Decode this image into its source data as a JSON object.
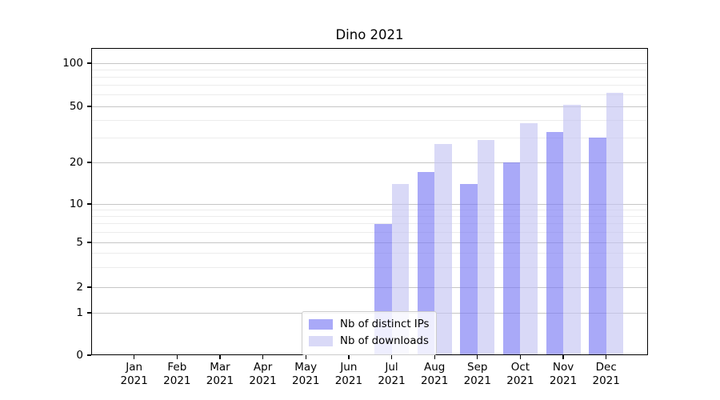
{
  "chart_data": {
    "type": "bar",
    "title": "Dino 2021",
    "xlabel": "",
    "ylabel": "",
    "yscale": "symlog",
    "grid": true,
    "gridlines_visible_through_bars": true,
    "legend_position": "lower center",
    "ylim": [
      0,
      125
    ],
    "yticks": [
      0,
      1,
      2,
      5,
      10,
      20,
      50,
      100
    ],
    "ytick_labels": [
      "0",
      "1",
      "2",
      "5",
      "10",
      "20",
      "50",
      "100"
    ],
    "yminor_ticks": [
      3,
      4,
      6,
      7,
      8,
      9,
      30,
      40,
      60,
      70,
      80,
      90
    ],
    "categories": [
      {
        "line1": "Jan",
        "line2": "2021"
      },
      {
        "line1": "Feb",
        "line2": "2021"
      },
      {
        "line1": "Mar",
        "line2": "2021"
      },
      {
        "line1": "Apr",
        "line2": "2021"
      },
      {
        "line1": "May",
        "line2": "2021"
      },
      {
        "line1": "Jun",
        "line2": "2021"
      },
      {
        "line1": "Jul",
        "line2": "2021"
      },
      {
        "line1": "Aug",
        "line2": "2021"
      },
      {
        "line1": "Sep",
        "line2": "2021"
      },
      {
        "line1": "Oct",
        "line2": "2021"
      },
      {
        "line1": "Nov",
        "line2": "2021"
      },
      {
        "line1": "Dec",
        "line2": "2021"
      }
    ],
    "series": [
      {
        "name": "Nb of distinct IPs",
        "color": "#7b7bf4",
        "composite_color_on_white": "#a9a9f8",
        "alpha": 0.65,
        "values": [
          0,
          0,
          0,
          0,
          0,
          0,
          7,
          17,
          14,
          20,
          33,
          30
        ]
      },
      {
        "name": "Nb of downloads",
        "color": "#c4c4f3",
        "composite_color_on_white": "#d9d9f7",
        "alpha": 0.65,
        "values": [
          0,
          0,
          0,
          0,
          0,
          0,
          14,
          27,
          29,
          38,
          51,
          62
        ]
      }
    ],
    "grid_major_color": "#c6c6c6",
    "grid_minor_color": "#ececec",
    "axis_color": "#000000"
  }
}
